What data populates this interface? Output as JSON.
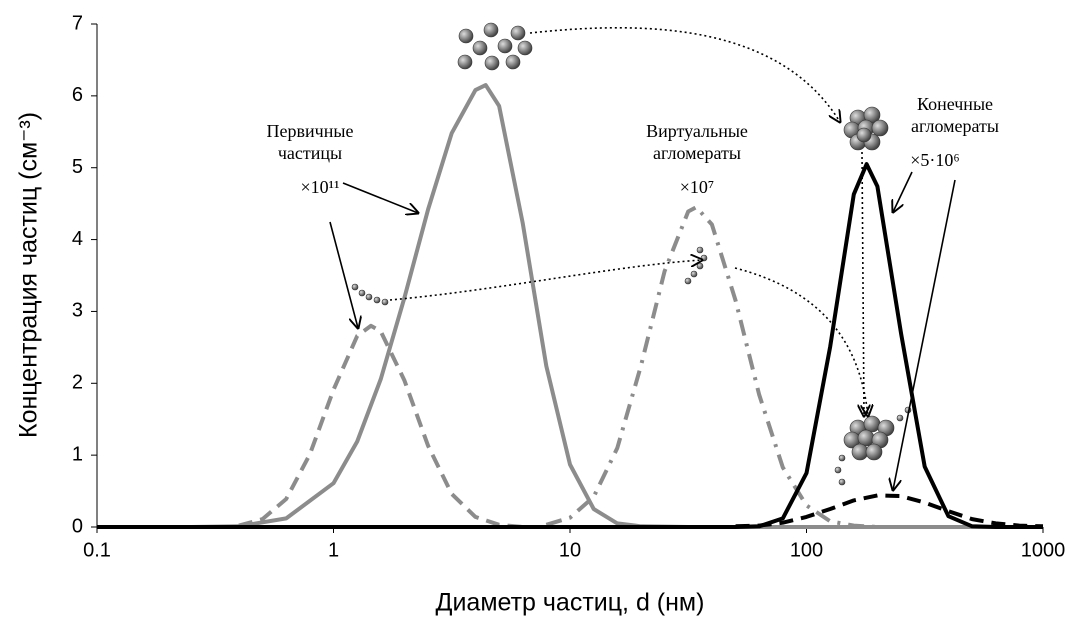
{
  "chart_data": {
    "type": "line",
    "xlabel": "Диаметр частиц, d (нм)",
    "ylabel": "Концентрация частиц (см⁻³)",
    "xscale": "log",
    "xlim": [
      0.1,
      1000
    ],
    "xticks": [
      0.1,
      1,
      10,
      100,
      1000
    ],
    "ylim": [
      0,
      7
    ],
    "yticks": [
      0,
      1,
      2,
      3,
      4,
      5,
      6,
      7
    ],
    "annotations": [
      [
        "Первичные",
        "частицы",
        "×10¹¹"
      ],
      [
        "Виртуальные",
        "агломераты",
        "×10⁷"
      ],
      [
        "Конечные",
        "агломераты",
        "×5·10⁶"
      ]
    ],
    "series": [
      {
        "color": "#8c8c8c",
        "style": "solid",
        "x": [
          0.1,
          0.251,
          0.398,
          0.631,
          1,
          1.259,
          1.585,
          1.995,
          2.512,
          3.162,
          3.981,
          4.4,
          5.012,
          6.31,
          7.943,
          10,
          12.59,
          15.85,
          19.95,
          31.62,
          1000
        ],
        "values": [
          0,
          0,
          0.01,
          0.12,
          0.61,
          1.19,
          2.06,
          3.19,
          4.42,
          5.48,
          6.08,
          6.15,
          5.86,
          4.23,
          2.24,
          0.87,
          0.25,
          0.05,
          0.01,
          0,
          0
        ]
      },
      {
        "color": "#8c8c8c",
        "style": "dash",
        "x": [
          0.398,
          0.501,
          0.631,
          0.794,
          1,
          1.259,
          1.44,
          1.585,
          1.995,
          2.512,
          3.162,
          3.981,
          5.012,
          6.31
        ],
        "values": [
          0.02,
          0.11,
          0.39,
          1.01,
          1.91,
          2.66,
          2.8,
          2.72,
          2.04,
          1.13,
          0.46,
          0.14,
          0.03,
          0
        ]
      },
      {
        "color": "#8c8c8c",
        "style": "dashdot",
        "x": [
          7.943,
          10,
          12.59,
          15.85,
          19.95,
          25.12,
          31.62,
          34.2,
          39.81,
          50.12,
          63.1,
          79.43,
          100,
          125.9,
          158.5,
          199.5
        ],
        "values": [
          0.03,
          0.13,
          0.42,
          1.1,
          2.24,
          3.56,
          4.39,
          4.45,
          4.21,
          3.15,
          1.84,
          0.83,
          0.3,
          0.08,
          0.02,
          0
        ]
      },
      {
        "color": "#000000",
        "style": "solid",
        "x": [
          0.1,
          50.12,
          63.1,
          79.43,
          100,
          125.9,
          158.5,
          179.5,
          199.5,
          251.2,
          316.2,
          398.1,
          501.2,
          631,
          1000
        ],
        "values": [
          0,
          0,
          0.01,
          0.12,
          0.75,
          2.51,
          4.63,
          5.05,
          4.74,
          2.69,
          0.84,
          0.15,
          0.01,
          0,
          0
        ]
      },
      {
        "color": "#000000",
        "style": "dash",
        "x": [
          50.12,
          63.1,
          79.43,
          100,
          125.9,
          158.5,
          199.5,
          251.2,
          316.2,
          398.1,
          501.2,
          631,
          794.3,
          1000
        ],
        "values": [
          0.01,
          0.02,
          0.06,
          0.14,
          0.25,
          0.37,
          0.44,
          0.43,
          0.34,
          0.22,
          0.11,
          0.05,
          0.02,
          0.01
        ]
      }
    ]
  }
}
